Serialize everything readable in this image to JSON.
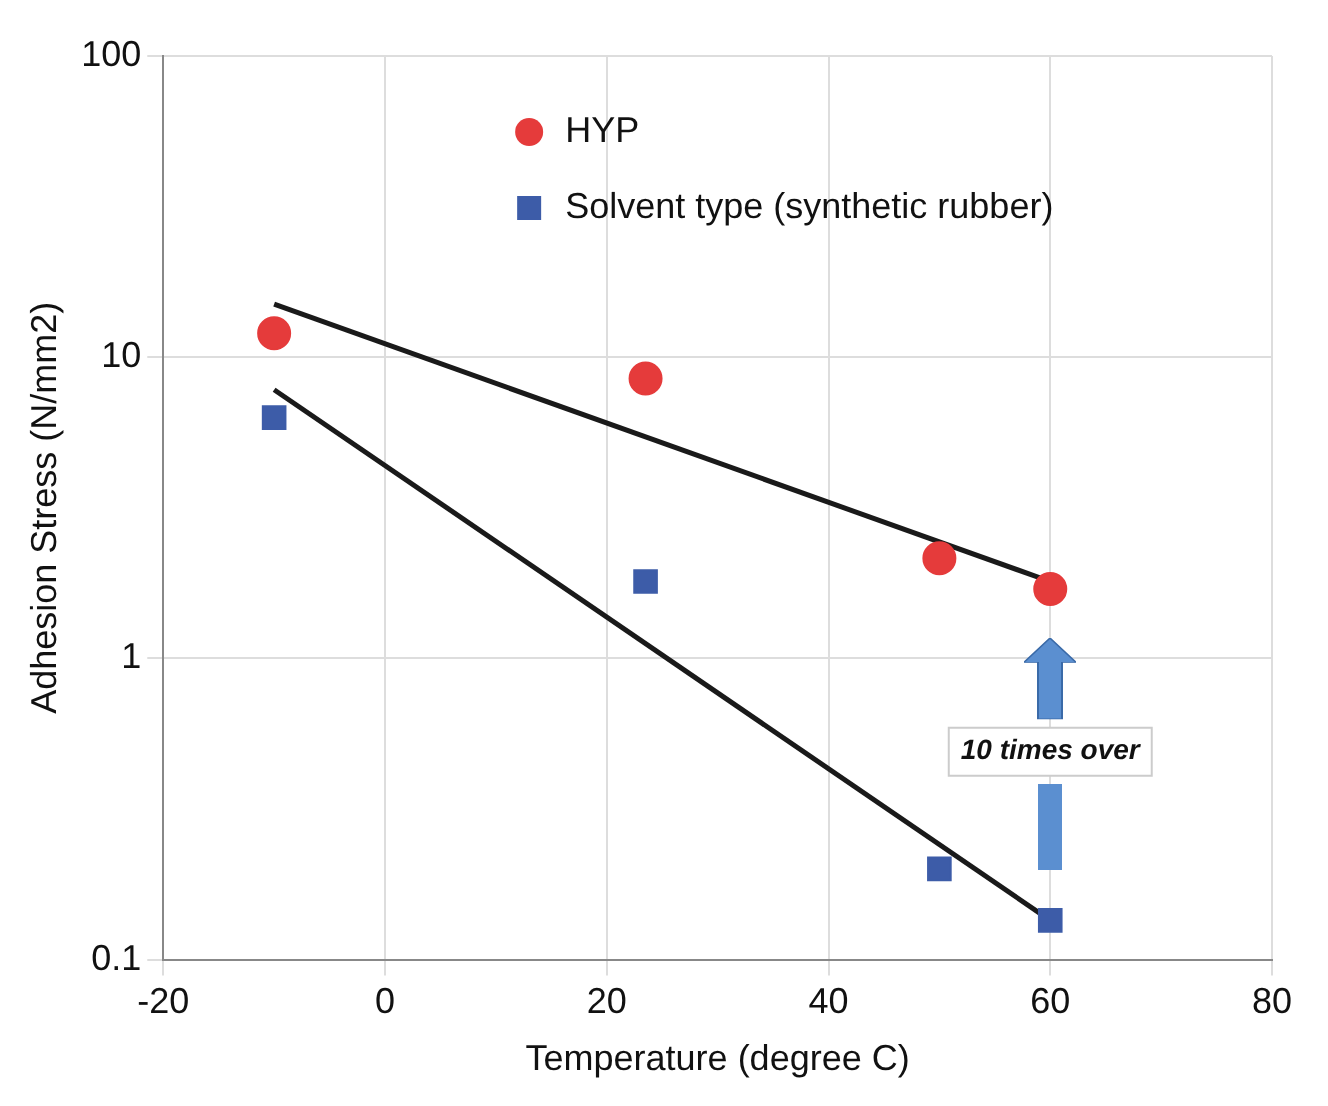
{
  "chart_data": {
    "type": "scatter",
    "xlabel": "Temperature (degree C)",
    "ylabel": "Adhesion Stress (N/mm2)",
    "series": [
      {
        "name": "HYP",
        "color": "#e53b3b",
        "marker": "circle",
        "x": [
          -10,
          23.5,
          50,
          60
        ],
        "values": [
          12,
          8.5,
          2.15,
          1.7
        ]
      },
      {
        "name": "Solvent type (synthetic rubber)",
        "color": "#3d5ca8",
        "marker": "square",
        "x": [
          -10,
          23.5,
          50,
          60
        ],
        "values": [
          6.3,
          1.8,
          0.2,
          0.135
        ]
      },
      {
        "type": "line",
        "color": "#1a1a1a",
        "marker": "none",
        "x": [
          -10,
          60
        ],
        "values": [
          15,
          1.8
        ]
      },
      {
        "type": "line",
        "color": "#1a1a1a",
        "marker": "none",
        "x": [
          -10,
          60
        ],
        "values": [
          7.8,
          0.135
        ]
      }
    ],
    "xlim": [
      -20,
      80
    ],
    "xticks": [
      -20,
      0,
      20,
      40,
      60,
      80
    ],
    "ylim": [
      0.1,
      100
    ],
    "yticks": [
      0.1,
      1,
      10,
      100
    ],
    "log": "y",
    "grid": true,
    "legend": "top",
    "annotations": [
      "10 times over"
    ]
  }
}
